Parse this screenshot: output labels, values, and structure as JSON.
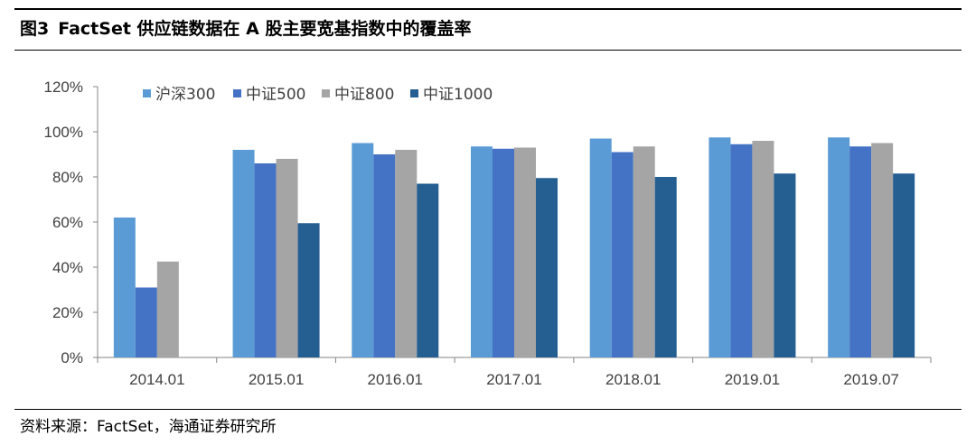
{
  "title": {
    "figure": "图3",
    "text": "FactSet 供应链数据在 A 股主要宽基指数中的覆盖率"
  },
  "source": "资料来源：FactSet，海通证券研究所",
  "chart_data": {
    "type": "bar",
    "categories": [
      "2014.01",
      "2015.01",
      "2016.01",
      "2017.01",
      "2018.01",
      "2019.01",
      "2019.07"
    ],
    "series": [
      {
        "name": "沪深300",
        "color": "#5B9BD5",
        "values": [
          62,
          92,
          95,
          93.5,
          97,
          97.5,
          97.5
        ]
      },
      {
        "name": "中证500",
        "color": "#4472C4",
        "values": [
          31,
          86,
          90,
          92.5,
          91,
          94.5,
          93.5
        ]
      },
      {
        "name": "中证800",
        "color": "#A5A5A5",
        "values": [
          42.5,
          88,
          92,
          93,
          93.5,
          96,
          95
        ]
      },
      {
        "name": "中证1000",
        "color": "#255E91",
        "values": [
          null,
          59.5,
          77,
          79.5,
          80,
          81.5,
          81.5
        ]
      }
    ],
    "ylim": [
      0,
      120
    ],
    "yticks": [
      "0%",
      "20%",
      "40%",
      "60%",
      "80%",
      "100%",
      "120%"
    ],
    "grid": false,
    "legend": "top-left"
  }
}
